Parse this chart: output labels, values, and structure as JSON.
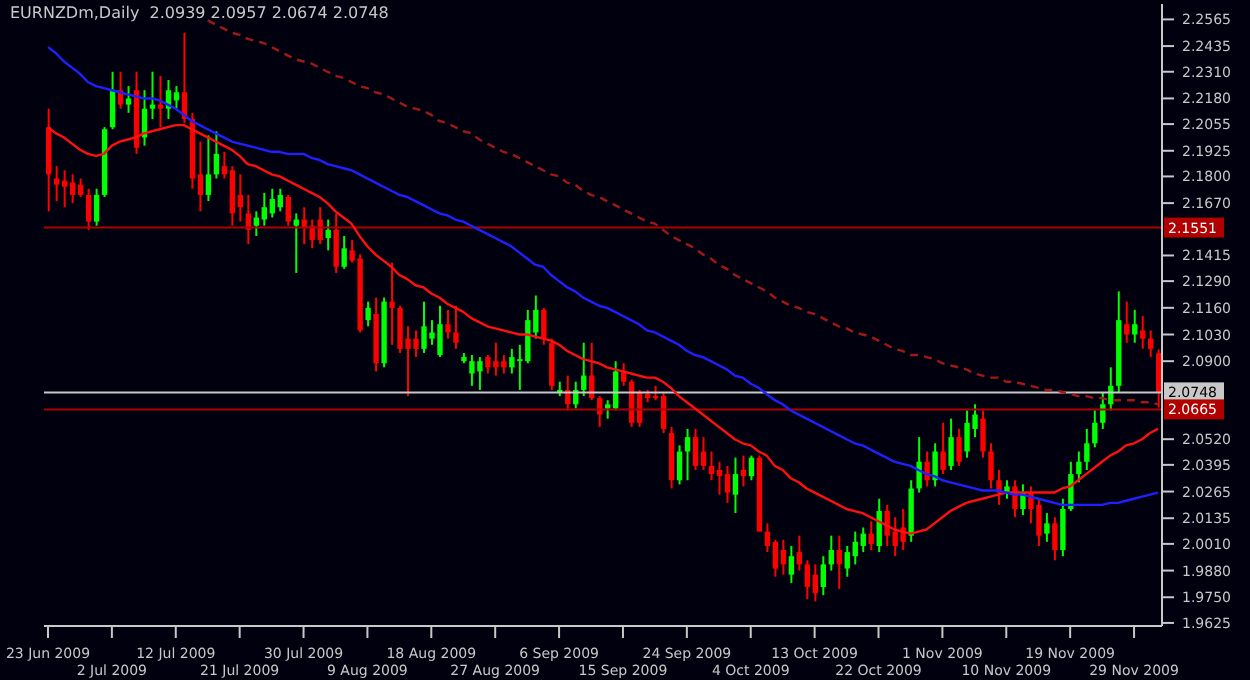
{
  "chart_data": {
    "type": "candlestick",
    "title": "EURNZDm,Daily  2.0939 2.0957 2.0674 2.0748",
    "categories": [
      "23 Jun 2009",
      null,
      null,
      null,
      null,
      null,
      null,
      null,
      "2 Jul 2009",
      null,
      null,
      null,
      null,
      null,
      null,
      null,
      "12 Jul 2009",
      null,
      null,
      null,
      null,
      null,
      null,
      null,
      "21 Jul 2009",
      null,
      null,
      null,
      null,
      null,
      null,
      null,
      "30 Jul 2009",
      null,
      null,
      null,
      null,
      null,
      null,
      null,
      "9 Aug 2009",
      null,
      null,
      null,
      null,
      null,
      null,
      null,
      "18 Aug 2009",
      null,
      null,
      null,
      null,
      null,
      null,
      null,
      "27 Aug 2009",
      null,
      null,
      null,
      null,
      null,
      null,
      null,
      "6 Sep 2009",
      null,
      null,
      null,
      null,
      null,
      null,
      null,
      "15 Sep 2009",
      null,
      null,
      null,
      null,
      null,
      null,
      null,
      "24 Sep 2009",
      null,
      null,
      null,
      null,
      null,
      null,
      null,
      "4 Oct 2009",
      null,
      null,
      null,
      null,
      null,
      null,
      null,
      "13 Oct 2009",
      null,
      null,
      null,
      null,
      null,
      null,
      null,
      "22 Oct 2009",
      null,
      null,
      null,
      null,
      null,
      null,
      null,
      "1 Nov 2009",
      null,
      null,
      null,
      null,
      null,
      null,
      null,
      "10 Nov 2009",
      null,
      null,
      null,
      null,
      null,
      null,
      null,
      "19 Nov 2009",
      null,
      null,
      null,
      null,
      null,
      null,
      null,
      "29 Nov 2009",
      null,
      null,
      null
    ],
    "ohlc": [
      [
        2.204,
        2.213,
        2.163,
        2.181
      ],
      [
        2.179,
        2.185,
        2.168,
        2.176
      ],
      [
        2.178,
        2.183,
        2.165,
        2.175
      ],
      [
        2.177,
        2.181,
        2.167,
        2.171
      ],
      [
        2.176,
        2.179,
        2.17,
        2.171
      ],
      [
        2.171,
        2.174,
        2.154,
        2.158
      ],
      [
        2.158,
        2.174,
        2.156,
        2.171
      ],
      [
        2.171,
        2.204,
        2.17,
        2.203
      ],
      [
        2.204,
        2.231,
        2.203,
        2.222
      ],
      [
        2.222,
        2.231,
        2.213,
        2.215
      ],
      [
        2.215,
        2.224,
        2.211,
        2.218
      ],
      [
        2.222,
        2.231,
        2.191,
        2.194
      ],
      [
        2.199,
        2.222,
        2.195,
        2.213
      ],
      [
        2.213,
        2.231,
        2.208,
        2.215
      ],
      [
        2.215,
        2.229,
        2.204,
        2.213
      ],
      [
        2.213,
        2.227,
        2.208,
        2.222
      ],
      [
        2.217,
        2.224,
        2.213,
        2.221
      ],
      [
        2.221,
        2.25,
        2.206,
        2.208
      ],
      [
        2.208,
        2.211,
        2.174,
        2.179
      ],
      [
        2.181,
        2.197,
        2.163,
        2.171
      ],
      [
        2.171,
        2.2,
        2.168,
        2.181
      ],
      [
        2.181,
        2.202,
        2.179,
        2.191
      ],
      [
        2.185,
        2.192,
        2.179,
        2.181
      ],
      [
        2.183,
        2.185,
        2.156,
        2.162
      ],
      [
        2.171,
        2.181,
        2.158,
        2.165
      ],
      [
        2.162,
        2.171,
        2.147,
        2.154
      ],
      [
        2.156,
        2.163,
        2.151,
        2.16
      ],
      [
        2.159,
        2.172,
        2.156,
        2.165
      ],
      [
        2.162,
        2.174,
        2.16,
        2.169
      ],
      [
        2.165,
        2.174,
        2.163,
        2.171
      ],
      [
        2.17,
        2.171,
        2.156,
        2.158
      ],
      [
        2.156,
        2.162,
        2.133,
        2.159
      ],
      [
        2.159,
        2.165,
        2.147,
        2.155
      ],
      [
        2.156,
        2.159,
        2.145,
        2.149
      ],
      [
        2.159,
        2.165,
        2.147,
        2.149
      ],
      [
        2.15,
        2.159,
        2.144,
        2.154
      ],
      [
        2.154,
        2.162,
        2.133,
        2.136
      ],
      [
        2.136,
        2.151,
        2.135,
        2.145
      ],
      [
        2.144,
        2.149,
        2.138,
        2.139
      ],
      [
        2.14,
        2.142,
        2.104,
        2.105
      ],
      [
        2.11,
        2.119,
        2.107,
        2.116
      ],
      [
        2.113,
        2.121,
        2.085,
        2.089
      ],
      [
        2.089,
        2.121,
        2.087,
        2.119
      ],
      [
        2.119,
        2.138,
        2.098,
        2.116
      ],
      [
        2.116,
        2.117,
        2.094,
        2.096
      ],
      [
        2.101,
        2.107,
        2.073,
        2.096
      ],
      [
        2.101,
        2.105,
        2.092,
        2.096
      ],
      [
        2.096,
        2.119,
        2.094,
        2.107
      ],
      [
        2.101,
        2.11,
        2.098,
        2.104
      ],
      [
        2.093,
        2.117,
        2.092,
        2.108
      ],
      [
        2.108,
        2.115,
        2.101,
        2.104
      ],
      [
        2.104,
        2.117,
        2.096,
        2.099
      ],
      [
        2.09,
        2.094,
        2.089,
        2.092
      ],
      [
        2.084,
        2.093,
        2.078,
        2.09
      ],
      [
        2.085,
        2.092,
        2.076,
        2.09
      ],
      [
        2.092,
        2.093,
        2.084,
        2.087
      ],
      [
        2.09,
        2.099,
        2.083,
        2.087
      ],
      [
        2.09,
        2.093,
        2.084,
        2.087
      ],
      [
        2.087,
        2.096,
        2.084,
        2.092
      ],
      [
        2.09,
        2.098,
        2.076,
        2.091
      ],
      [
        2.09,
        2.115,
        2.089,
        2.11
      ],
      [
        2.104,
        2.122,
        2.101,
        2.115
      ],
      [
        2.115,
        2.116,
        2.098,
        2.101
      ],
      [
        2.099,
        2.101,
        2.076,
        2.078
      ],
      [
        2.075,
        2.08,
        2.073,
        2.076
      ],
      [
        2.076,
        2.083,
        2.066,
        2.069
      ],
      [
        2.069,
        2.08,
        2.067,
        2.076
      ],
      [
        2.076,
        2.099,
        2.073,
        2.083
      ],
      [
        2.083,
        2.099,
        2.071,
        2.072
      ],
      [
        2.072,
        2.073,
        2.058,
        2.064
      ],
      [
        2.067,
        2.071,
        2.062,
        2.069
      ],
      [
        2.067,
        2.09,
        2.066,
        2.085
      ],
      [
        2.085,
        2.089,
        2.078,
        2.08
      ],
      [
        2.08,
        2.081,
        2.058,
        2.06
      ],
      [
        2.075,
        2.076,
        2.058,
        2.06
      ],
      [
        2.074,
        2.076,
        2.07,
        2.072
      ],
      [
        2.073,
        2.078,
        2.071,
        2.072
      ],
      [
        2.073,
        2.075,
        2.055,
        2.057
      ],
      [
        2.055,
        2.058,
        2.028,
        2.032
      ],
      [
        2.032,
        2.049,
        2.03,
        2.046
      ],
      [
        2.046,
        2.057,
        2.032,
        2.053
      ],
      [
        2.053,
        2.057,
        2.037,
        2.039
      ],
      [
        2.046,
        2.053,
        2.037,
        2.039
      ],
      [
        2.039,
        2.046,
        2.032,
        2.035
      ],
      [
        2.037,
        2.041,
        2.025,
        2.034
      ],
      [
        2.035,
        2.039,
        2.021,
        2.026
      ],
      [
        2.025,
        2.043,
        2.016,
        2.035
      ],
      [
        2.037,
        2.044,
        2.029,
        2.034
      ],
      [
        2.034,
        2.044,
        2.032,
        2.043
      ],
      [
        2.043,
        2.044,
        2.007,
        2.007
      ],
      [
        2.007,
        2.011,
        1.997,
        2.0
      ],
      [
        2.002,
        2.003,
        1.985,
        1.989
      ],
      [
        1.998,
        2.003,
        1.986,
        1.991
      ],
      [
        1.986,
        2.0,
        1.982,
        1.995
      ],
      [
        1.997,
        2.005,
        1.988,
        1.991
      ],
      [
        1.991,
        1.993,
        1.974,
        1.98
      ],
      [
        1.986,
        1.991,
        1.973,
        1.977
      ],
      [
        1.98,
        1.995,
        1.976,
        1.991
      ],
      [
        1.991,
        2.005,
        1.988,
        1.998
      ],
      [
        1.998,
        2.005,
        1.979,
        1.991
      ],
      [
        1.989,
        2.0,
        1.985,
        1.997
      ],
      [
        1.995,
        2.007,
        1.991,
        2.002
      ],
      [
        2.0,
        2.009,
        1.997,
        2.006
      ],
      [
        2.006,
        2.012,
        1.998,
        2.001
      ],
      [
        2.0,
        2.023,
        1.997,
        2.017
      ],
      [
        2.017,
        2.02,
        2.0,
        2.005
      ],
      [
        2.007,
        2.014,
        1.995,
        2.0
      ],
      [
        2.009,
        2.018,
        1.998,
        2.002
      ],
      [
        2.005,
        2.032,
        2.002,
        2.028
      ],
      [
        2.028,
        2.053,
        2.026,
        2.041
      ],
      [
        2.041,
        2.046,
        2.029,
        2.032
      ],
      [
        2.032,
        2.05,
        2.029,
        2.046
      ],
      [
        2.046,
        2.06,
        2.035,
        2.037
      ],
      [
        2.039,
        2.062,
        2.037,
        2.053
      ],
      [
        2.053,
        2.057,
        2.039,
        2.041
      ],
      [
        2.046,
        2.066,
        2.043,
        2.06
      ],
      [
        2.057,
        2.069,
        2.053,
        2.064
      ],
      [
        2.062,
        2.066,
        2.043,
        2.046
      ],
      [
        2.046,
        2.05,
        2.028,
        2.032
      ],
      [
        2.032,
        2.037,
        2.02,
        2.026
      ],
      [
        2.026,
        2.032,
        2.023,
        2.029
      ],
      [
        2.029,
        2.032,
        2.014,
        2.018
      ],
      [
        2.018,
        2.03,
        2.015,
        2.026
      ],
      [
        2.026,
        2.029,
        2.011,
        2.018
      ],
      [
        2.02,
        2.023,
        2.0,
        2.005
      ],
      [
        2.006,
        2.016,
        2.002,
        2.011
      ],
      [
        2.011,
        2.014,
        1.993,
        1.998
      ],
      [
        1.998,
        2.023,
        1.995,
        2.018
      ],
      [
        2.018,
        2.041,
        2.017,
        2.035
      ],
      [
        2.035,
        2.046,
        2.031,
        2.041
      ],
      [
        2.041,
        2.057,
        2.037,
        2.05
      ],
      [
        2.05,
        2.066,
        2.048,
        2.06
      ],
      [
        2.06,
        2.075,
        2.057,
        2.069
      ],
      [
        2.069,
        2.087,
        2.066,
        2.078
      ],
      [
        2.078,
        2.124,
        2.075,
        2.11
      ],
      [
        2.108,
        2.119,
        2.099,
        2.103
      ],
      [
        2.103,
        2.115,
        2.099,
        2.108
      ],
      [
        2.105,
        2.112,
        2.096,
        2.101
      ],
      [
        2.101,
        2.105,
        2.092,
        2.096
      ],
      [
        2.0939,
        2.0957,
        2.0674,
        2.0748
      ]
    ],
    "series": [
      {
        "type": "line",
        "color": "#ff1010",
        "values": [
          2.204,
          2.201,
          2.199,
          2.196,
          2.193,
          2.191,
          2.19,
          2.191,
          2.195,
          2.197,
          2.198,
          2.199,
          2.201,
          2.202,
          2.203,
          2.204,
          2.205,
          2.205,
          2.203,
          2.201,
          2.199,
          2.197,
          2.195,
          2.193,
          2.19,
          2.186,
          2.185,
          2.183,
          2.181,
          2.18,
          2.178,
          2.176,
          2.174,
          2.172,
          2.17,
          2.167,
          2.163,
          2.16,
          2.157,
          2.151,
          2.146,
          2.142,
          2.139,
          2.136,
          2.132,
          2.13,
          2.127,
          2.126,
          2.123,
          2.121,
          2.118,
          2.116,
          2.114,
          2.111,
          2.109,
          2.107,
          2.106,
          2.105,
          2.104,
          2.103,
          2.103,
          2.102,
          2.101,
          2.1,
          2.098,
          2.095,
          2.093,
          2.091,
          2.09,
          2.089,
          2.087,
          2.086,
          2.085,
          2.084,
          2.083,
          2.082,
          2.082,
          2.08,
          2.077,
          2.073,
          2.07,
          2.067,
          2.064,
          2.061,
          2.058,
          2.055,
          2.052,
          2.05,
          2.049,
          2.046,
          2.044,
          2.039,
          2.037,
          2.033,
          2.031,
          2.028,
          2.026,
          2.024,
          2.022,
          2.02,
          2.018,
          2.017,
          2.016,
          2.014,
          2.012,
          2.01,
          2.008,
          2.007,
          2.006,
          2.007,
          2.008,
          2.011,
          2.014,
          2.017,
          2.019,
          2.021,
          2.022,
          2.023,
          2.024,
          2.025,
          2.026,
          2.026,
          2.026,
          2.026,
          2.026,
          2.026,
          2.026,
          2.028,
          2.029,
          2.032,
          2.035,
          2.038,
          2.041,
          2.044,
          2.046,
          2.049,
          2.05,
          2.052,
          2.055,
          2.057
        ]
      },
      {
        "type": "line",
        "color": "#2020ff",
        "values": [
          2.243,
          2.24,
          2.236,
          2.233,
          2.23,
          2.226,
          2.224,
          2.223,
          2.222,
          2.221,
          2.22,
          2.219,
          2.218,
          2.218,
          2.217,
          2.215,
          2.213,
          2.21,
          2.207,
          2.205,
          2.203,
          2.201,
          2.199,
          2.197,
          2.196,
          2.195,
          2.194,
          2.193,
          2.192,
          2.192,
          2.191,
          2.191,
          2.191,
          2.189,
          2.188,
          2.186,
          2.185,
          2.184,
          2.183,
          2.181,
          2.179,
          2.177,
          2.175,
          2.173,
          2.171,
          2.17,
          2.168,
          2.166,
          2.164,
          2.162,
          2.161,
          2.159,
          2.158,
          2.156,
          2.154,
          2.152,
          2.15,
          2.148,
          2.146,
          2.143,
          2.14,
          2.137,
          2.136,
          2.132,
          2.129,
          2.126,
          2.124,
          2.121,
          2.119,
          2.117,
          2.116,
          2.114,
          2.112,
          2.11,
          2.108,
          2.105,
          2.104,
          2.102,
          2.1,
          2.098,
          2.095,
          2.093,
          2.092,
          2.09,
          2.088,
          2.086,
          2.083,
          2.082,
          2.079,
          2.077,
          2.074,
          2.071,
          2.069,
          2.066,
          2.064,
          2.062,
          2.06,
          2.058,
          2.056,
          2.054,
          2.052,
          2.05,
          2.049,
          2.047,
          2.045,
          2.043,
          2.041,
          2.04,
          2.039,
          2.037,
          2.035,
          2.034,
          2.032,
          2.031,
          2.03,
          2.029,
          2.028,
          2.027,
          2.027,
          2.027,
          2.026,
          2.025,
          2.025,
          2.024,
          2.023,
          2.022,
          2.021,
          2.02,
          2.02,
          2.02,
          2.02,
          2.02,
          2.02,
          2.021,
          2.021,
          2.022,
          2.023,
          2.024,
          2.025,
          2.026
        ]
      },
      {
        "type": "line",
        "color": "#a01818",
        "line_style": "dashed",
        "values": [
          null,
          null,
          null,
          null,
          null,
          null,
          null,
          null,
          null,
          null,
          null,
          null,
          null,
          null,
          null,
          null,
          null,
          null,
          null,
          null,
          2.256,
          2.254,
          2.252,
          2.25,
          2.249,
          2.247,
          2.246,
          2.245,
          2.243,
          2.241,
          2.239,
          2.237,
          2.236,
          2.235,
          2.233,
          2.231,
          2.229,
          2.228,
          2.226,
          2.224,
          2.223,
          2.221,
          2.22,
          2.218,
          2.216,
          2.214,
          2.213,
          2.212,
          2.21,
          2.207,
          2.206,
          2.204,
          2.202,
          2.201,
          2.198,
          2.196,
          2.194,
          2.192,
          2.191,
          2.189,
          2.187,
          2.185,
          2.183,
          2.181,
          2.18,
          2.177,
          2.176,
          2.173,
          2.171,
          2.17,
          2.168,
          2.166,
          2.164,
          2.162,
          2.16,
          2.158,
          2.157,
          2.154,
          2.151,
          2.149,
          2.147,
          2.145,
          2.142,
          2.14,
          2.137,
          2.135,
          2.132,
          2.13,
          2.128,
          2.126,
          2.124,
          2.121,
          2.119,
          2.117,
          2.116,
          2.114,
          2.113,
          2.111,
          2.109,
          2.107,
          2.106,
          2.104,
          2.103,
          2.102,
          2.1,
          2.098,
          2.096,
          2.095,
          2.093,
          2.093,
          2.092,
          2.091,
          2.089,
          2.088,
          2.087,
          2.086,
          2.084,
          2.083,
          2.082,
          2.082,
          2.08,
          2.08,
          2.079,
          2.078,
          2.077,
          2.076,
          2.076,
          2.075,
          2.074,
          2.073,
          2.073,
          2.072,
          2.072,
          2.071,
          2.071,
          2.071,
          2.071,
          2.07,
          2.07,
          2.069
        ]
      }
    ],
    "ylim": [
      1.961,
      2.264
    ],
    "yticks": [
      {
        "value": 2.2565,
        "label": "2.2565"
      },
      {
        "value": 2.2435,
        "label": "2.2435"
      },
      {
        "value": 2.231,
        "label": "2.2310"
      },
      {
        "value": 2.218,
        "label": "2.2180"
      },
      {
        "value": 2.2055,
        "label": "2.2055"
      },
      {
        "value": 2.1925,
        "label": "2.1925"
      },
      {
        "value": 2.18,
        "label": "2.1800"
      },
      {
        "value": 2.167,
        "label": "2.1670"
      },
      {
        "value": 2.1415,
        "label": "2.1415"
      },
      {
        "value": 2.129,
        "label": "2.1290"
      },
      {
        "value": 2.116,
        "label": "2.1160"
      },
      {
        "value": 2.103,
        "label": "2.1030"
      },
      {
        "value": 2.09,
        "label": "2.0900"
      },
      {
        "value": 2.052,
        "label": "2.0520"
      },
      {
        "value": 2.0395,
        "label": "2.0395"
      },
      {
        "value": 2.0265,
        "label": "2.0265"
      },
      {
        "value": 2.0135,
        "label": "2.0135"
      },
      {
        "value": 2.001,
        "label": "2.0010"
      },
      {
        "value": 1.988,
        "label": "1.9880"
      },
      {
        "value": 1.975,
        "label": "1.9750"
      },
      {
        "value": 1.9625,
        "label": "1.9625"
      }
    ],
    "ref_lines": [
      {
        "axis": "y",
        "value": 2.1551,
        "label": "2.1551",
        "color": "#b00000"
      },
      {
        "axis": "y",
        "value": 2.0748,
        "label": "2.0748",
        "color": "#c8c8c8"
      },
      {
        "axis": "y",
        "value": 2.0665,
        "label": "2.0665",
        "color": "#b00000"
      }
    ]
  }
}
